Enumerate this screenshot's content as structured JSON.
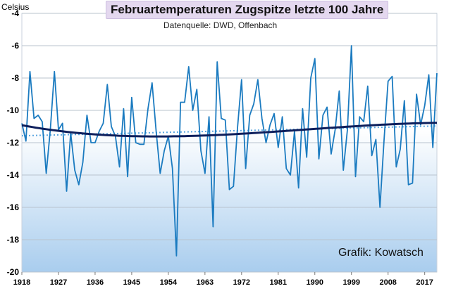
{
  "chart_data": {
    "type": "line",
    "title": "Februartemperaturen Zugspitze letzte 100 Jahre",
    "subtitle": "Datenquelle: DWD, Offenbach",
    "ylabel": "Celsius",
    "credit": "Grafik: Kowatsch",
    "ylim": [
      -20,
      -4
    ],
    "xlim": [
      1918,
      2020
    ],
    "yticks": [
      -20,
      -18,
      -16,
      -14,
      -12,
      -10,
      -8,
      -6,
      -4
    ],
    "xticks": [
      1918,
      1927,
      1936,
      1945,
      1954,
      1963,
      1972,
      1981,
      1990,
      1999,
      2008,
      2017
    ],
    "grid": "horizontal",
    "colors": {
      "series": "#1b7bc0",
      "trend": "#0d1f5c",
      "linear": "#5aa6e0",
      "grid": "#b9c3ce",
      "bg_top": "#ffffff",
      "bg_bottom": "#a9cdee"
    },
    "series": [
      {
        "x": [
          1918,
          1919,
          1920,
          1921,
          1922,
          1923,
          1924,
          1925,
          1926,
          1927,
          1928,
          1929,
          1930,
          1931,
          1932,
          1933,
          1934,
          1935,
          1936,
          1937,
          1938,
          1939,
          1940,
          1941,
          1942,
          1943,
          1944,
          1945,
          1946,
          1947,
          1948,
          1949,
          1950,
          1951,
          1952,
          1953,
          1954,
          1955,
          1956,
          1957,
          1958,
          1959,
          1960,
          1961,
          1962,
          1963,
          1964,
          1965,
          1966,
          1967,
          1968,
          1969,
          1970,
          1971,
          1972,
          1973,
          1974,
          1975,
          1976,
          1977,
          1978,
          1979,
          1980,
          1981,
          1982,
          1983,
          1984,
          1985,
          1986,
          1987,
          1988,
          1989,
          1990,
          1991,
          1992,
          1993,
          1994,
          1995,
          1996,
          1997,
          1998,
          1999,
          2000,
          2001,
          2002,
          2003,
          2004,
          2005,
          2006,
          2007,
          2008,
          2009,
          2010,
          2011,
          2012,
          2013,
          2014,
          2015,
          2016,
          2017,
          2018,
          2019,
          2020
        ],
        "values": [
          -10.8,
          -11.9,
          -7.6,
          -10.5,
          -10.3,
          -10.7,
          -13.9,
          -11.2,
          -7.6,
          -11.2,
          -10.8,
          -15.0,
          -11.4,
          -13.7,
          -14.6,
          -13.2,
          -10.3,
          -12.0,
          -12.0,
          -11.3,
          -10.8,
          -8.4,
          -11.0,
          -11.6,
          -13.5,
          -9.9,
          -14.1,
          -9.2,
          -12.0,
          -12.1,
          -12.1,
          -9.9,
          -8.3,
          -11.3,
          -13.9,
          -12.5,
          -11.6,
          -13.6,
          -19.0,
          -9.5,
          -9.5,
          -7.3,
          -10.0,
          -8.7,
          -12.5,
          -13.9,
          -10.4,
          -17.2,
          -7.0,
          -10.5,
          -10.6,
          -14.9,
          -14.7,
          -11.1,
          -8.1,
          -13.6,
          -10.3,
          -9.6,
          -8.1,
          -10.5,
          -12.0,
          -10.9,
          -10.2,
          -12.3,
          -10.4,
          -13.6,
          -14.0,
          -11.3,
          -14.8,
          -9.9,
          -12.9,
          -8.0,
          -6.8,
          -13.0,
          -10.3,
          -9.8,
          -12.7,
          -11.2,
          -8.8,
          -13.7,
          -11.2,
          -6.0,
          -14.1,
          -10.4,
          -10.7,
          -8.5,
          -12.8,
          -11.8,
          -16.0,
          -11.9,
          -8.2,
          -7.9,
          -13.5,
          -12.4,
          -9.4,
          -14.6,
          -14.5,
          -9.0,
          -10.9,
          -9.7,
          -7.8,
          -12.3,
          -7.7
        ]
      }
    ]
  }
}
